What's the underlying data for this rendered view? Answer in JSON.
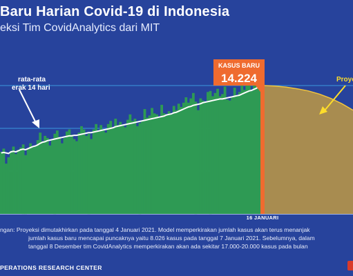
{
  "header": {
    "title": "Baru Harian Covid-19 di Indonesia",
    "subtitle": "eksi Tim CovidAnalytics dari MIT"
  },
  "annotations": {
    "avg_label_line1": "rata-rata",
    "avg_label_line2": "erak 14 hari",
    "kasus_label": "KASUS BARU",
    "kasus_value": "14.224",
    "proyeksi_label": "Proye",
    "date_label": "16 JANUARI"
  },
  "note": {
    "line1": "ngan: Proyeksi dimutakhirkan pada tanggal 4 Januari 2021. Model memperkirakan jumlah kasus akan terus menanjak",
    "line2": "jumlah kasus baru mencapai puncaknya yaitu 8.026 kasus pada tanggal 7 Januari 2021. Sebelumnya, dalam",
    "line3": "tanggal 8 Desember tim CovidAnalytics memperkirakan akan ada sekitar 17.000-20.000 kasus  pada bulan"
  },
  "footer": {
    "text": "PERATIONS RESEARCH CENTER"
  },
  "colors": {
    "background": "#27439c",
    "bars": "#2e9a54",
    "average_line": "#ffffff",
    "highlight": "#ef6b2f",
    "projection_fill": "#a88c50",
    "projection_line": "#f2c53d",
    "arrow_yellow": "#ffdd2a",
    "gridline": "#3ea3e6"
  },
  "chart_data": {
    "type": "bar",
    "title": "Baru Harian Covid-19 di Indonesia",
    "subtitle": "eksi Tim CovidAnalytics dari MIT",
    "xlabel": "",
    "ylabel": "",
    "ylim": [
      0,
      16000
    ],
    "grid": true,
    "highlight": {
      "label": "KASUS BARU",
      "value": 14224,
      "date": "16 JANUARI"
    },
    "series": [
      {
        "name": "",
        "kind": "bar",
        "values": [
          5800,
          6100,
          4700,
          5300,
          5900,
          6300,
          5600,
          6000,
          6200,
          6500,
          5500,
          6100,
          6600,
          6300,
          6400,
          6900,
          7600,
          6800,
          7300,
          7100,
          6400,
          7000,
          7500,
          7800,
          7200,
          6600,
          7100,
          7700,
          7900,
          7400,
          7000,
          6800,
          7600,
          8200,
          7900,
          7300,
          7500,
          7000,
          7900,
          8400,
          7700,
          8300,
          7900,
          7600,
          8400,
          8700,
          8000,
          8900,
          8300,
          8600,
          8300,
          8100,
          8800,
          9300,
          8700,
          8900,
          8200,
          8500,
          8700,
          9800,
          9000,
          9200,
          9900,
          9400,
          9300,
          9100,
          10200,
          9400,
          9200,
          9600,
          9300,
          10100,
          9700,
          10300,
          10000,
          10400,
          10900,
          10400,
          10800,
          11300,
          10500,
          9700,
          10800,
          10600,
          10400,
          11400,
          11500,
          11000,
          11300,
          11700,
          11000,
          11200,
          11900,
          10700,
          10600,
          11000,
          11800,
          11100,
          11400,
          12000,
          11600,
          12400,
          12100,
          11500,
          12300,
          12700,
          13500,
          14224
        ]
      },
      {
        "name": "",
        "kind": "line",
        "values": [
          5700,
          5750,
          5700,
          5650,
          5800,
          5850,
          5800,
          5900,
          6000,
          6050,
          6000,
          6100,
          6200,
          6300,
          6350,
          6450,
          6600,
          6700,
          6750,
          6850,
          6900,
          6950,
          7000,
          7050,
          7100,
          7150,
          7200,
          7250,
          7300,
          7300,
          7350,
          7350,
          7400,
          7450,
          7500,
          7550,
          7600,
          7600,
          7650,
          7700,
          7750,
          7800,
          7850,
          7900,
          7950,
          8000,
          8050,
          8150,
          8200,
          8250,
          8300,
          8350,
          8400,
          8450,
          8500,
          8550,
          8600,
          8650,
          8700,
          8750,
          8800,
          8850,
          8900,
          8950,
          9000,
          9050,
          9100,
          9150,
          9250,
          9300,
          9350,
          9450,
          9500,
          9600,
          9700,
          9800,
          9900,
          10000,
          10050,
          10150,
          10200,
          10250,
          10300,
          10400,
          10450,
          10500,
          10550,
          10600,
          10650,
          10700,
          10750,
          10750,
          10800,
          10850,
          10900,
          10950,
          11000,
          11050,
          11100,
          11200,
          11300,
          11400,
          11500,
          11550,
          11650,
          11750,
          11900,
          12000
        ]
      },
      {
        "name": "Proye",
        "kind": "projection",
        "values": [
          12000,
          11950,
          11850,
          11700,
          11500,
          11200,
          10800,
          10300,
          9700
        ]
      }
    ]
  }
}
